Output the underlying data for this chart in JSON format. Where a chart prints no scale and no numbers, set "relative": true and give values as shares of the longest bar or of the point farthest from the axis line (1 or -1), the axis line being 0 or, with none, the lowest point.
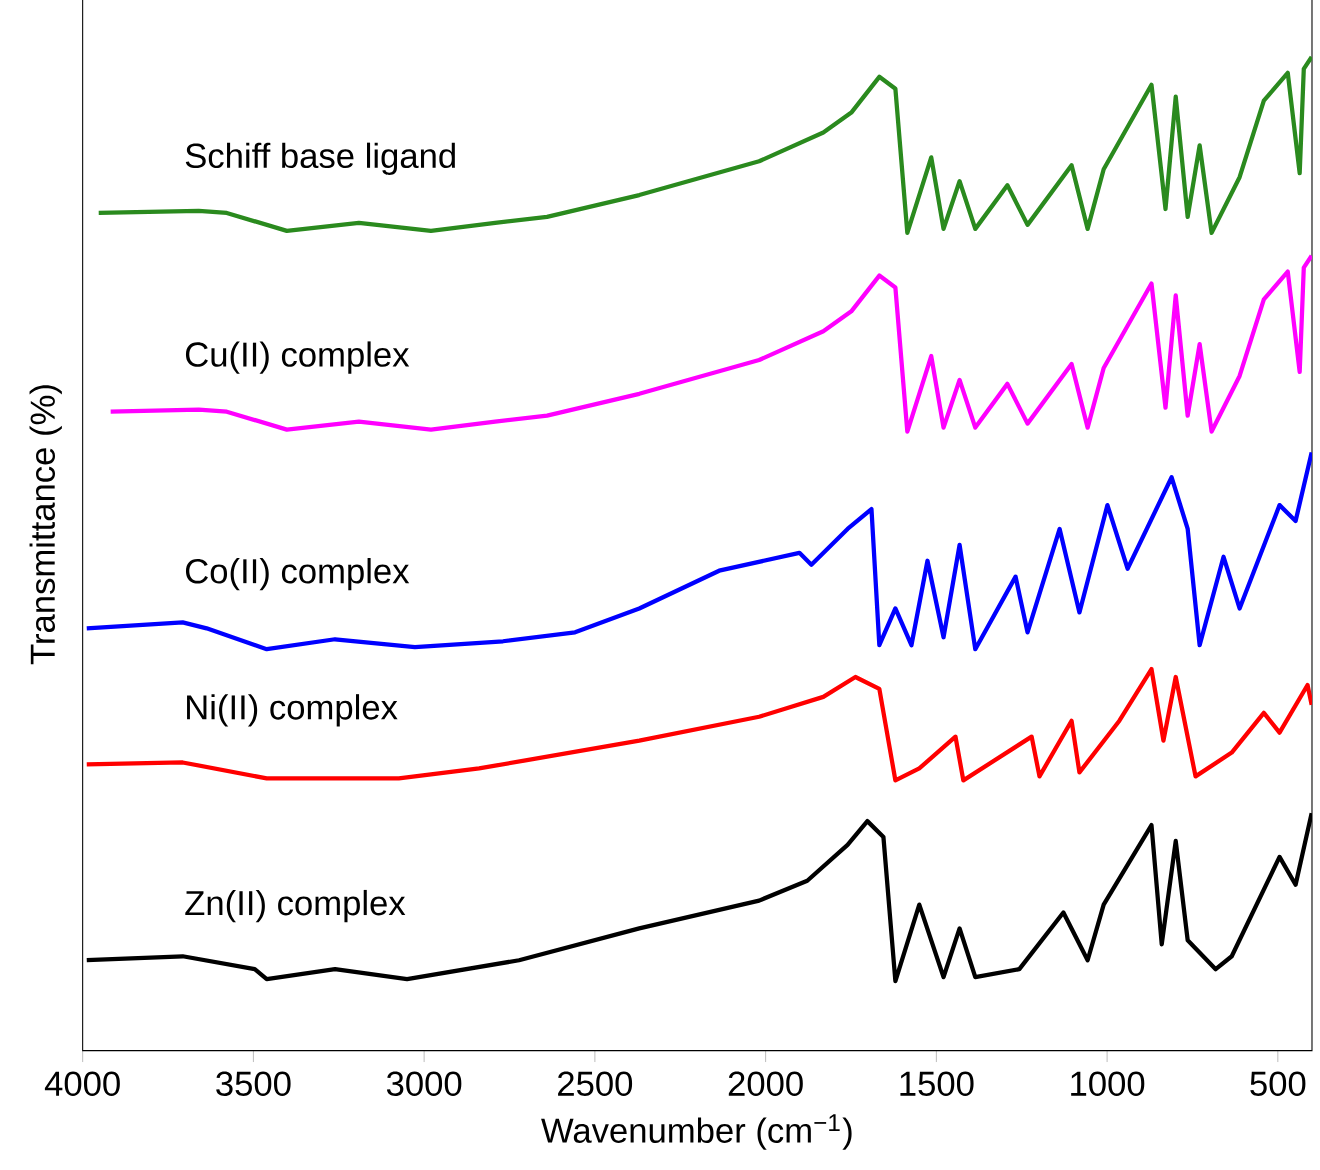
{
  "chart_data": {
    "type": "line",
    "xlabel": "Wavenumber (cm$^{−1}$)",
    "ylabel": "Transmittance (%)",
    "relative": true,
    "xlim": [
      4000,
      400
    ],
    "xticks": [
      4000,
      3500,
      3000,
      2500,
      2000,
      1500,
      1000,
      500
    ],
    "legend": false,
    "grid": false,
    "series": [
      {
        "name": "Schiff base ligand",
        "color": "#2a8a1e",
        "x": [
          3953,
          3660,
          3578,
          3402,
          3191,
          2980,
          2792,
          2640,
          2370,
          2019,
          1831,
          1749,
          1667,
          1620,
          1585,
          1515,
          1479,
          1432,
          1386,
          1292,
          1233,
          1104,
          1057,
          1010,
          870,
          829,
          799,
          764,
          729,
          694,
          612,
          541,
          471,
          436,
          424,
          401
        ],
        "values": [
          0.843,
          0.845,
          0.843,
          0.825,
          0.833,
          0.825,
          0.833,
          0.839,
          0.861,
          0.895,
          0.924,
          0.944,
          0.98,
          0.968,
          0.823,
          0.899,
          0.827,
          0.875,
          0.827,
          0.871,
          0.831,
          0.891,
          0.827,
          0.887,
          0.972,
          0.847,
          0.96,
          0.839,
          0.911,
          0.823,
          0.879,
          0.956,
          0.984,
          0.883,
          0.988,
          1.0
        ]
      },
      {
        "name": "Cu(II) complex",
        "color": "#ff00ff",
        "x": [
          3918,
          3660,
          3578,
          3402,
          3191,
          2980,
          2792,
          2640,
          2370,
          2019,
          1831,
          1749,
          1667,
          1620,
          1585,
          1515,
          1479,
          1432,
          1386,
          1292,
          1233,
          1104,
          1057,
          1010,
          870,
          829,
          799,
          764,
          729,
          694,
          612,
          541,
          471,
          436,
          424,
          401
        ],
        "values": [
          0.643,
          0.645,
          0.643,
          0.625,
          0.633,
          0.625,
          0.633,
          0.639,
          0.661,
          0.695,
          0.724,
          0.744,
          0.78,
          0.768,
          0.623,
          0.699,
          0.627,
          0.675,
          0.627,
          0.671,
          0.631,
          0.691,
          0.627,
          0.687,
          0.772,
          0.647,
          0.76,
          0.639,
          0.711,
          0.623,
          0.679,
          0.756,
          0.784,
          0.683,
          0.788,
          0.8
        ]
      },
      {
        "name": "Co(II) complex",
        "color": "#0000ff",
        "x": [
          3988,
          3707,
          3637,
          3461,
          3261,
          3027,
          2769,
          2558,
          2370,
          2136,
          1901,
          1866,
          1760,
          1690,
          1667,
          1620,
          1573,
          1526,
          1479,
          1432,
          1386,
          1268,
          1233,
          1139,
          1081,
          999,
          940,
          811,
          764,
          729,
          659,
          612,
          495,
          448,
          401
        ],
        "values": [
          0.425,
          0.431,
          0.425,
          0.404,
          0.414,
          0.406,
          0.412,
          0.421,
          0.445,
          0.483,
          0.501,
          0.489,
          0.525,
          0.545,
          0.408,
          0.445,
          0.408,
          0.493,
          0.416,
          0.509,
          0.404,
          0.477,
          0.421,
          0.525,
          0.441,
          0.549,
          0.485,
          0.577,
          0.525,
          0.408,
          0.497,
          0.445,
          0.549,
          0.533,
          0.602
        ]
      },
      {
        "name": "Ni(II) complex",
        "color": "#ff0000",
        "x": [
          3988,
          3707,
          3461,
          3074,
          2839,
          2370,
          2019,
          1831,
          1737,
          1667,
          1620,
          1550,
          1444,
          1421,
          1221,
          1198,
          1104,
          1081,
          964,
          870,
          835,
          799,
          741,
          635,
          541,
          495,
          413,
          401
        ],
        "values": [
          0.288,
          0.29,
          0.274,
          0.274,
          0.284,
          0.312,
          0.336,
          0.356,
          0.376,
          0.364,
          0.272,
          0.284,
          0.316,
          0.272,
          0.316,
          0.276,
          0.332,
          0.28,
          0.332,
          0.384,
          0.312,
          0.376,
          0.276,
          0.3,
          0.34,
          0.32,
          0.368,
          0.348
        ]
      },
      {
        "name": "Zn(II) complex",
        "color": "#000000",
        "x": [
          3988,
          3707,
          3496,
          3461,
          3261,
          3050,
          2722,
          2370,
          2019,
          1878,
          1760,
          1702,
          1655,
          1620,
          1550,
          1479,
          1432,
          1386,
          1257,
          1128,
          1057,
          1010,
          870,
          840,
          799,
          764,
          682,
          635,
          495,
          448,
          401
        ],
        "values": [
          0.091,
          0.095,
          0.082,
          0.072,
          0.082,
          0.072,
          0.091,
          0.123,
          0.151,
          0.171,
          0.207,
          0.231,
          0.215,
          0.07,
          0.147,
          0.074,
          0.123,
          0.074,
          0.082,
          0.139,
          0.091,
          0.147,
          0.227,
          0.107,
          0.211,
          0.111,
          0.082,
          0.095,
          0.195,
          0.167,
          0.239
        ]
      }
    ]
  }
}
